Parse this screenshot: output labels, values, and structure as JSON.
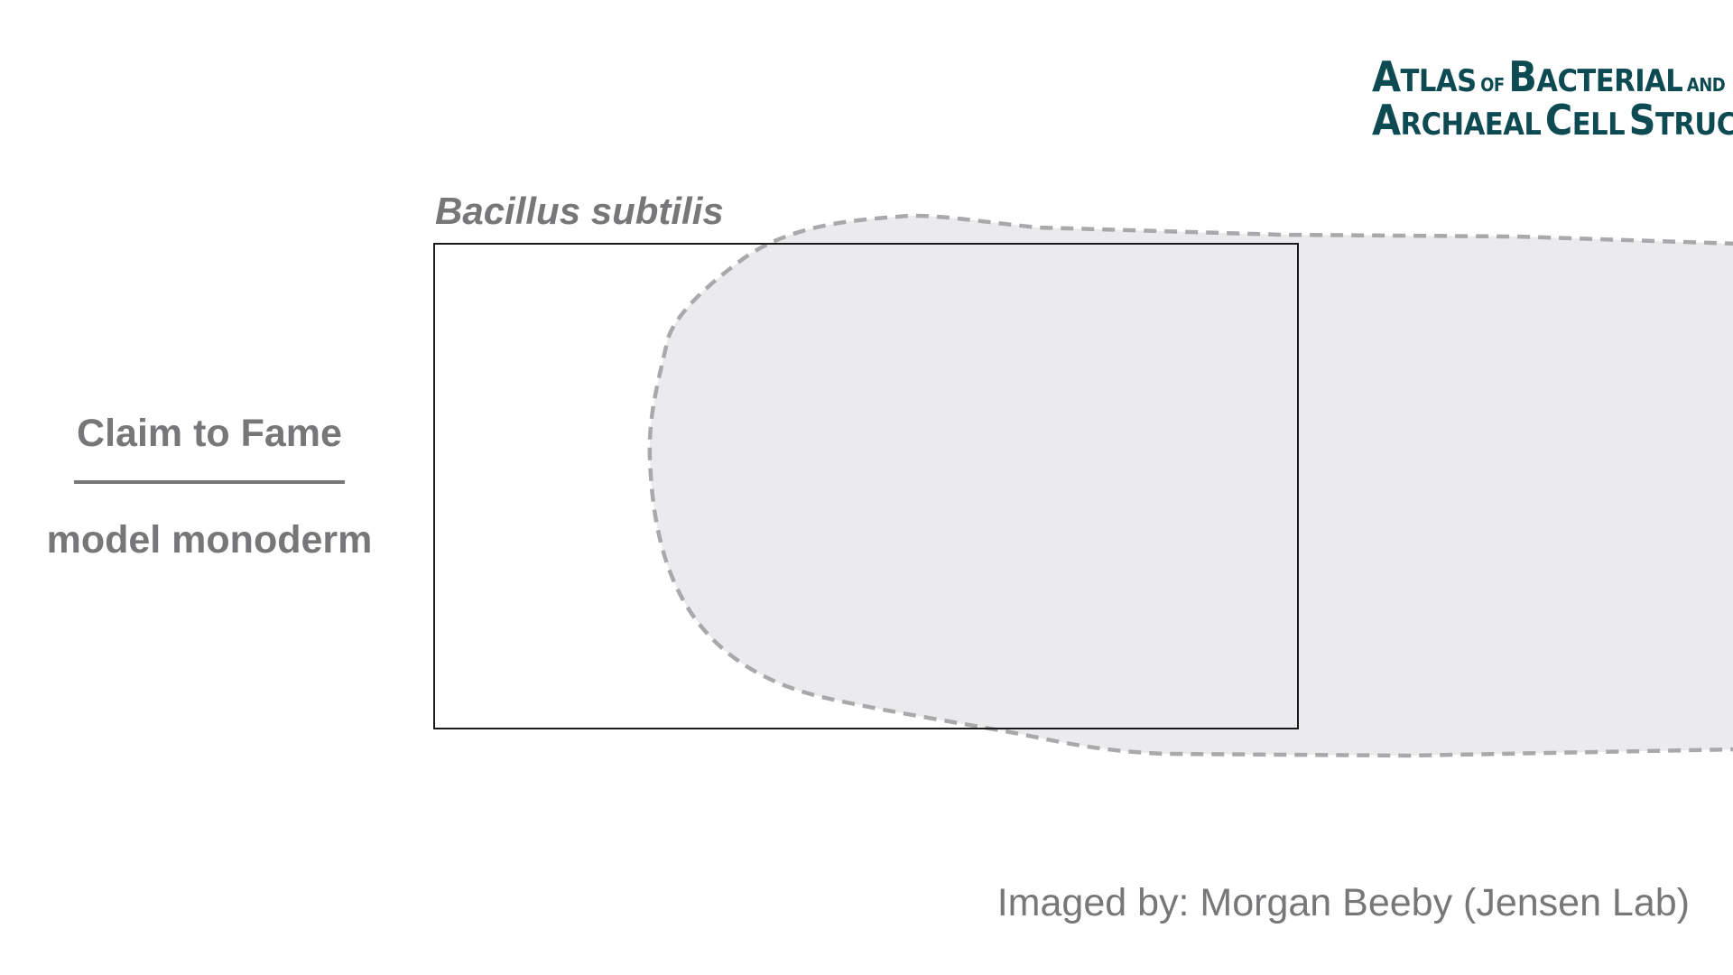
{
  "logo": {
    "line1_a": "A",
    "line1_b": "TLAS",
    "line1_of": "OF",
    "line1_c": "B",
    "line1_d": "ACTERIAL",
    "line1_and": "AND",
    "line2_a": "A",
    "line2_b": "RCHAEAL",
    "line2_c": "C",
    "line2_d": "ELL",
    "line2_e": "S",
    "line2_f": "TRUCTURE"
  },
  "species": "Bacillus subtilis",
  "claim_to_fame": {
    "heading": "Claim to Fame",
    "value": "model monoderm"
  },
  "credit": "Imaged by: Morgan Beeby (Jensen Lab)",
  "colors": {
    "logo": "#0d4a52",
    "text_gray": "#77777a",
    "cell_fill": "#ebebed",
    "cell_outline": "#a9a9ab",
    "frame_border": "#1a1a1a"
  }
}
